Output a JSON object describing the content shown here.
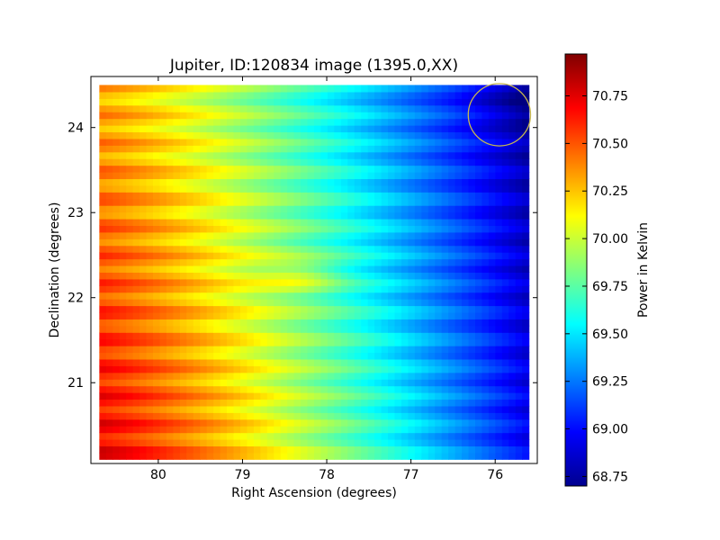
{
  "chart_data": {
    "type": "heatmap",
    "title": "Jupiter, ID:120834 image (1395.0,XX)",
    "xlabel": "Right Ascension (degrees)",
    "ylabel": "Declination (degrees)",
    "xlim": [
      80.8,
      75.5
    ],
    "ylim": [
      20.05,
      24.6
    ],
    "x_ticks": [
      80,
      79,
      78,
      77,
      76
    ],
    "y_ticks": [
      21,
      22,
      23,
      24
    ],
    "x_tick_labels": [
      "80",
      "79",
      "78",
      "77",
      "76"
    ],
    "y_tick_labels": [
      "21",
      "22",
      "23",
      "24"
    ],
    "data_extent": {
      "ra": [
        80.7,
        75.6
      ],
      "dec": [
        20.1,
        24.5
      ]
    },
    "colormap": "jet",
    "colorbar": {
      "label": "Power in Kelvin",
      "range": [
        68.7,
        70.97
      ],
      "ticks": [
        68.75,
        69.0,
        69.25,
        69.5,
        69.75,
        70.0,
        70.25,
        70.5,
        70.75
      ],
      "tick_labels": [
        "68.75",
        "69.00",
        "69.25",
        "69.50",
        "69.75",
        "70.00",
        "70.25",
        "70.50",
        "70.75"
      ]
    },
    "marker": {
      "shape": "circle",
      "ra": 75.95,
      "dec": 24.15,
      "radius_deg": 0.37,
      "color": "#c8b850"
    },
    "grid": false
  }
}
